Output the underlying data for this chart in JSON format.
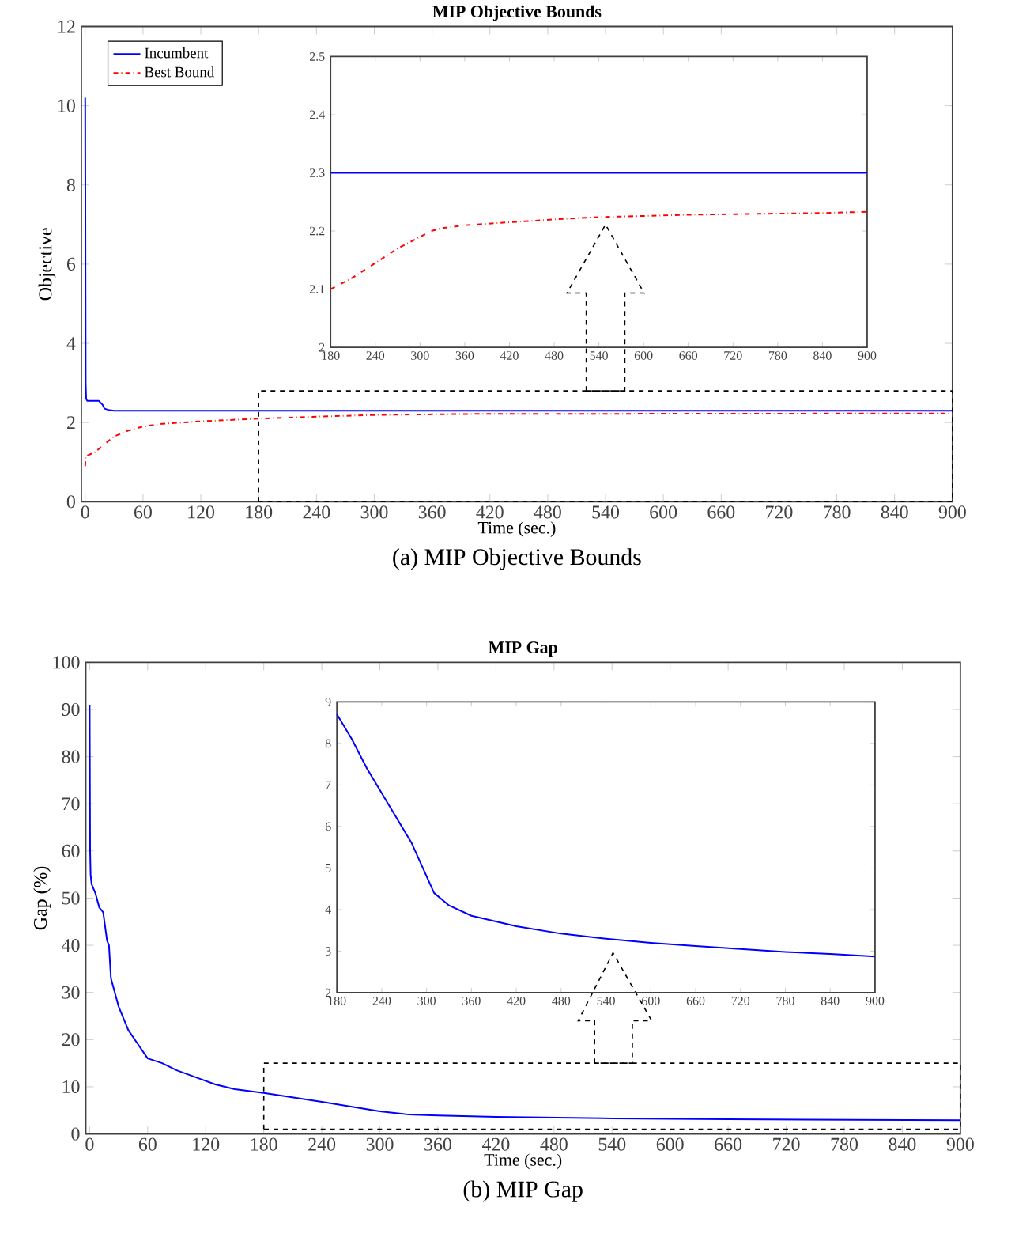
{
  "chart_data": [
    {
      "type": "line",
      "title": "MIP Objective Bounds",
      "xlabel": "Time (sec.)",
      "ylabel": "Objective",
      "xlim": [
        -4,
        900
      ],
      "ylim": [
        0,
        12
      ],
      "xticks": [
        0,
        60,
        120,
        180,
        240,
        300,
        360,
        420,
        480,
        540,
        600,
        660,
        720,
        780,
        840,
        900
      ],
      "yticks": [
        0,
        2,
        4,
        6,
        8,
        10,
        12
      ],
      "legend": "top left",
      "annotations": [
        "(a) MIP Objective Bounds"
      ],
      "series": [
        {
          "name": "Incumbent",
          "color": "#0000ff",
          "line_style": "solid",
          "x": [
            0,
            0.5,
            1,
            2,
            14,
            18,
            20,
            24,
            30,
            900
          ],
          "values": [
            10.2,
            3.0,
            2.6,
            2.55,
            2.55,
            2.45,
            2.35,
            2.32,
            2.3,
            2.3
          ]
        },
        {
          "name": "Best Bound",
          "color": "#ff0000",
          "line_style": "dashdot",
          "x": [
            0,
            0.5,
            10,
            20,
            30,
            45,
            60,
            80,
            120,
            180,
            240,
            300,
            330,
            420,
            540,
            900
          ],
          "values": [
            0.9,
            1.15,
            1.25,
            1.45,
            1.65,
            1.8,
            1.9,
            1.97,
            2.03,
            2.1,
            2.15,
            2.19,
            2.2,
            2.22,
            2.22,
            2.23
          ]
        }
      ]
    },
    {
      "type": "line",
      "xlim": [
        180,
        900
      ],
      "ylim": [
        2,
        2.5
      ],
      "xticks": [
        180,
        240,
        300,
        360,
        420,
        480,
        540,
        600,
        660,
        720,
        780,
        840,
        900
      ],
      "yticks": [
        2,
        2.1,
        2.2,
        2.3,
        2.4,
        2.5
      ],
      "series": [
        {
          "color": "#0000ff",
          "line_style": "solid",
          "x": [
            180,
            900
          ],
          "values": [
            2.3,
            2.3
          ]
        },
        {
          "color": "#ff0000",
          "line_style": "dashdot",
          "x": [
            180,
            210,
            240,
            270,
            300,
            315,
            330,
            360,
            420,
            480,
            540,
            600,
            660,
            720,
            780,
            840,
            900
          ],
          "values": [
            2.1,
            2.12,
            2.145,
            2.17,
            2.19,
            2.2,
            2.205,
            2.21,
            2.215,
            2.22,
            2.224,
            2.226,
            2.228,
            2.229,
            2.23,
            2.231,
            2.233
          ]
        }
      ]
    },
    {
      "type": "line",
      "title": "MIP Gap",
      "xlabel": "Time (sec.)",
      "ylabel": "Gap (%)",
      "xlim": [
        -4,
        900
      ],
      "ylim": [
        0,
        100
      ],
      "xticks": [
        0,
        60,
        120,
        180,
        240,
        300,
        360,
        420,
        480,
        540,
        600,
        660,
        720,
        780,
        840,
        900
      ],
      "yticks": [
        0,
        10,
        20,
        30,
        40,
        50,
        60,
        70,
        80,
        90,
        100
      ],
      "annotations": [
        "(b) MIP Gap"
      ],
      "series": [
        {
          "color": "#0000ff",
          "line_style": "solid",
          "x": [
            0,
            0.5,
            1,
            2,
            6,
            10,
            14,
            18,
            20,
            22,
            30,
            40,
            50,
            60,
            75,
            90,
            110,
            130,
            150,
            180,
            240,
            300,
            330,
            360,
            420,
            540,
            660,
            900
          ],
          "values": [
            91,
            60,
            55,
            53,
            51,
            48,
            47,
            41,
            40,
            33,
            27,
            22,
            19,
            16,
            15,
            13.5,
            12,
            10.5,
            9.5,
            8.7,
            6.8,
            4.8,
            4.1,
            3.9,
            3.6,
            3.3,
            3.1,
            2.9
          ]
        }
      ]
    },
    {
      "type": "line",
      "xlim": [
        180,
        900
      ],
      "ylim": [
        2,
        9
      ],
      "xticks": [
        180,
        240,
        300,
        360,
        420,
        480,
        540,
        600,
        660,
        720,
        780,
        840,
        900
      ],
      "yticks": [
        2,
        3,
        4,
        5,
        6,
        7,
        8,
        9
      ],
      "series": [
        {
          "color": "#0000ff",
          "line_style": "solid",
          "x": [
            180,
            200,
            220,
            240,
            260,
            280,
            300,
            310,
            330,
            360,
            420,
            480,
            540,
            600,
            660,
            720,
            780,
            840,
            900
          ],
          "values": [
            8.7,
            8.1,
            7.4,
            6.8,
            6.2,
            5.6,
            4.8,
            4.4,
            4.1,
            3.85,
            3.6,
            3.42,
            3.3,
            3.2,
            3.12,
            3.05,
            2.98,
            2.93,
            2.87
          ]
        }
      ]
    }
  ]
}
